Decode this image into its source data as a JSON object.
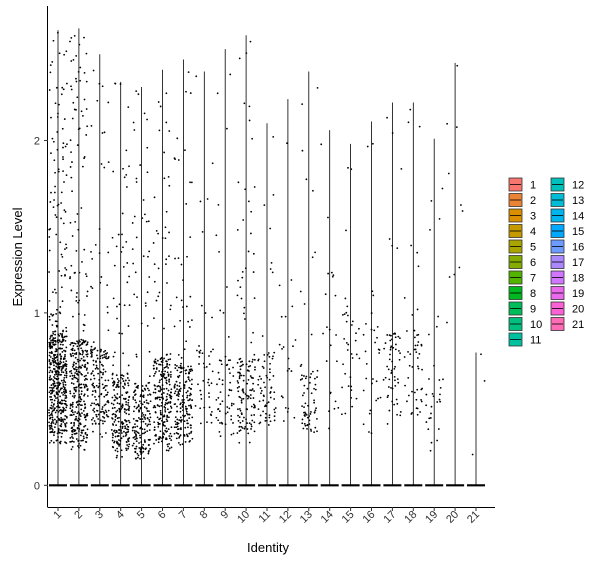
{
  "chart_data": {
    "type": "violin-jitter",
    "xlabel": "Identity",
    "ylabel": "Expression Level",
    "categories": [
      "1",
      "2",
      "3",
      "4",
      "5",
      "6",
      "7",
      "8",
      "9",
      "10",
      "11",
      "12",
      "13",
      "14",
      "15",
      "16",
      "17",
      "18",
      "19",
      "20",
      "21"
    ],
    "yticks": [
      0,
      1,
      2
    ],
    "ylim": [
      -0.12,
      2.78
    ],
    "baseline_value": 0,
    "grid": false,
    "legend_position": "right",
    "legend_columns": [
      [
        "1",
        "2",
        "3",
        "4",
        "5",
        "6",
        "7",
        "8",
        "9",
        "10",
        "11"
      ],
      [
        "12",
        "13",
        "14",
        "15",
        "16",
        "17",
        "18",
        "19",
        "20",
        "21"
      ]
    ],
    "series": [
      {
        "name": "1",
        "color": "#F8766D",
        "max": 2.64,
        "cluster_low": 0.3,
        "cluster_high": 0.9,
        "count": 520
      },
      {
        "name": "2",
        "color": "#EB8335",
        "max": 2.65,
        "cluster_low": 0.25,
        "cluster_high": 0.85,
        "count": 360
      },
      {
        "name": "3",
        "color": "#DA8F00",
        "max": 2.5,
        "cluster_low": 0.35,
        "cluster_high": 0.8,
        "count": 170
      },
      {
        "name": "4",
        "color": "#C49A00",
        "max": 2.34,
        "cluster_low": 0.2,
        "cluster_high": 0.65,
        "count": 230
      },
      {
        "name": "5",
        "color": "#A9A400",
        "max": 2.31,
        "cluster_low": 0.18,
        "cluster_high": 0.6,
        "count": 200
      },
      {
        "name": "6",
        "color": "#86AC00",
        "max": 2.41,
        "cluster_low": 0.25,
        "cluster_high": 0.75,
        "count": 250
      },
      {
        "name": "7",
        "color": "#53B400",
        "max": 2.47,
        "cluster_low": 0.25,
        "cluster_high": 0.7,
        "count": 200
      },
      {
        "name": "8",
        "color": "#00B81F",
        "max": 2.4,
        "cluster_low": 0.35,
        "cluster_high": 0.8,
        "count": 45
      },
      {
        "name": "9",
        "color": "#00BC59",
        "max": 2.53,
        "cluster_low": 0.35,
        "cluster_high": 0.75,
        "count": 60
      },
      {
        "name": "10",
        "color": "#00BF7F",
        "max": 2.61,
        "cluster_low": 0.3,
        "cluster_high": 0.75,
        "count": 140
      },
      {
        "name": "11",
        "color": "#00C19F",
        "max": 2.1,
        "cluster_low": 0.35,
        "cluster_high": 0.8,
        "count": 70
      },
      {
        "name": "12",
        "color": "#00C0BB",
        "max": 2.24,
        "cluster_low": 0.4,
        "cluster_high": 1.2,
        "count": 22
      },
      {
        "name": "13",
        "color": "#00BCD6",
        "max": 2.4,
        "cluster_low": 0.3,
        "cluster_high": 0.7,
        "count": 70
      },
      {
        "name": "14",
        "color": "#00B5EE",
        "max": 2.06,
        "cluster_low": 0.4,
        "cluster_high": 1.3,
        "count": 22
      },
      {
        "name": "15",
        "color": "#00A9FF",
        "max": 1.98,
        "cluster_low": 0.4,
        "cluster_high": 1.1,
        "count": 35
      },
      {
        "name": "16",
        "color": "#6E9BFF",
        "max": 2.11,
        "cluster_low": 0.3,
        "cluster_high": 1.0,
        "count": 30
      },
      {
        "name": "17",
        "color": "#AC88FF",
        "max": 2.22,
        "cluster_low": 0.4,
        "cluster_high": 0.9,
        "count": 60
      },
      {
        "name": "18",
        "color": "#D177FF",
        "max": 2.22,
        "cluster_low": 0.4,
        "cluster_high": 0.9,
        "count": 50
      },
      {
        "name": "19",
        "color": "#EA69EC",
        "max": 2.01,
        "cluster_low": 0.25,
        "cluster_high": 0.7,
        "count": 30
      },
      {
        "name": "20",
        "color": "#FA62D5",
        "max": 2.45,
        "cluster_low": 0.8,
        "cluster_high": 2.2,
        "count": 10
      },
      {
        "name": "21",
        "color": "#FF6BB5",
        "max": 0.77,
        "cluster_low": 0.15,
        "cluster_high": 0.77,
        "count": 3
      }
    ]
  }
}
